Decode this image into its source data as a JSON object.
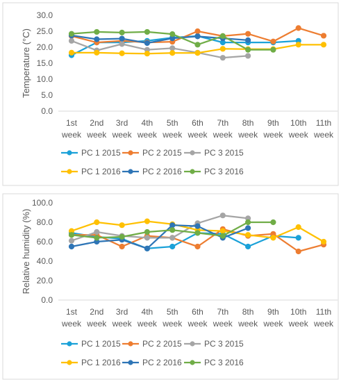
{
  "chart_data": [
    {
      "type": "line",
      "title": "",
      "xlabel": "",
      "ylabel": "Temperature (°C)",
      "ylim": [
        0,
        30
      ],
      "yticks": [
        "0.0",
        "5.0",
        "10.0",
        "15.0",
        "20.0",
        "25.0",
        "30.0"
      ],
      "ytick_values": [
        0,
        5,
        10,
        15,
        20,
        25,
        30
      ],
      "grid": false,
      "legend_position": "bottom",
      "categories": [
        [
          "1st",
          "week"
        ],
        [
          "2nd",
          "week"
        ],
        [
          "3rd",
          "week"
        ],
        [
          "4th",
          "week"
        ],
        [
          "5th",
          "week"
        ],
        [
          "6th",
          "week"
        ],
        [
          "7th",
          "week"
        ],
        [
          "8th",
          "week"
        ],
        [
          "9th",
          "week"
        ],
        [
          "10th",
          "week"
        ],
        [
          "11th",
          "week"
        ]
      ],
      "series": [
        {
          "name": "PC 1 2015",
          "color": "#1ba1d8",
          "values": [
            17.5,
            21.5,
            21.5,
            22.0,
            23.0,
            23.5,
            21.5,
            21.5,
            21.5,
            22.0,
            null
          ]
        },
        {
          "name": "PC 2 2015",
          "color": "#ed7d31",
          "values": [
            23.5,
            21.5,
            22.0,
            21.5,
            21.7,
            25.0,
            23.5,
            24.2,
            21.8,
            26.0,
            23.6
          ]
        },
        {
          "name": "PC 3 2015",
          "color": "#a5a5a5",
          "values": [
            22.0,
            19.0,
            21.0,
            19.2,
            19.7,
            18.3,
            16.7,
            17.3,
            null,
            null,
            null
          ]
        },
        {
          "name": "PC 1 2016",
          "color": "#ffc000",
          "values": [
            18.3,
            18.3,
            18.1,
            18.0,
            18.2,
            18.2,
            19.5,
            19.4,
            19.4,
            20.8,
            20.8
          ]
        },
        {
          "name": "PC 2 2016",
          "color": "#2e75b6",
          "values": [
            23.7,
            22.5,
            22.7,
            21.3,
            22.8,
            23.4,
            22.8,
            22.2,
            null,
            null,
            null
          ]
        },
        {
          "name": "PC 3 2016",
          "color": "#70ad47",
          "values": [
            24.2,
            24.8,
            24.6,
            24.8,
            24.1,
            20.8,
            23.5,
            19.2,
            19.2,
            null,
            null
          ]
        }
      ]
    },
    {
      "type": "line",
      "title": "",
      "xlabel": "",
      "ylabel": "Relative humidity (%)",
      "ylim": [
        0,
        100
      ],
      "yticks": [
        "0.0",
        "20.0",
        "40.0",
        "60.0",
        "80.0",
        "100.0"
      ],
      "ytick_values": [
        0,
        20,
        40,
        60,
        80,
        100
      ],
      "grid": false,
      "legend_position": "bottom",
      "categories": [
        [
          "1st",
          "week"
        ],
        [
          "2nd",
          "week"
        ],
        [
          "3rd",
          "week"
        ],
        [
          "4th",
          "week"
        ],
        [
          "5th",
          "week"
        ],
        [
          "6th",
          "week"
        ],
        [
          "7th",
          "week"
        ],
        [
          "8th",
          "week"
        ],
        [
          "9th",
          "week"
        ],
        [
          "10th",
          "week"
        ],
        [
          "11th",
          "week"
        ]
      ],
      "series": [
        {
          "name": "PC 1 2015",
          "color": "#1ba1d8",
          "values": [
            69,
            65,
            63,
            53,
            55,
            69,
            68,
            55,
            66,
            64,
            null
          ]
        },
        {
          "name": "PC 2 2015",
          "color": "#ed7d31",
          "values": [
            67,
            67,
            55,
            66,
            64,
            55,
            73,
            66,
            68,
            50,
            57
          ]
        },
        {
          "name": "PC 3 2015",
          "color": "#a5a5a5",
          "values": [
            61,
            70,
            66,
            64,
            64,
            79,
            87,
            84,
            null,
            null,
            null
          ]
        },
        {
          "name": "PC 1 2016",
          "color": "#ffc000",
          "values": [
            71,
            80,
            77,
            81,
            78,
            72,
            71,
            67,
            64,
            75,
            60
          ]
        },
        {
          "name": "PC 2 2016",
          "color": "#2e75b6",
          "values": [
            55,
            60,
            62,
            53,
            77,
            76,
            64,
            74,
            null,
            null,
            null
          ]
        },
        {
          "name": "PC 3 2016",
          "color": "#70ad47",
          "values": [
            67,
            64,
            65,
            70,
            72,
            69,
            66,
            80,
            80,
            null,
            null
          ]
        }
      ]
    }
  ]
}
